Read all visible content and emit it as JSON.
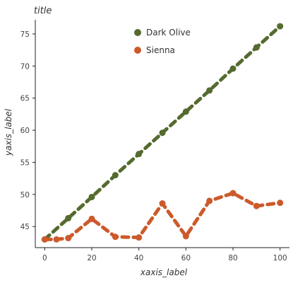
{
  "chart_data": {
    "type": "line",
    "title": "title",
    "xlabel": "xaxis_label",
    "ylabel": "yaxis_label",
    "xlim": [
      -4,
      104
    ],
    "ylim": [
      42.6,
      77.2
    ],
    "xticks": [
      0,
      20,
      40,
      60,
      80,
      100
    ],
    "yticks": [
      45,
      50,
      55,
      60,
      65,
      70,
      75
    ],
    "legend_position": "top-right",
    "grid": false,
    "series": [
      {
        "name": "Dark Olive",
        "color": "#556b2f",
        "x": [
          0,
          10,
          20,
          30,
          40,
          50,
          60,
          70,
          80,
          90,
          100
        ],
        "y": [
          43.0,
          46.3,
          49.6,
          53.0,
          56.3,
          59.6,
          62.9,
          66.2,
          69.6,
          72.9,
          76.2
        ]
      },
      {
        "name": "Sienna",
        "color": "#cc5a2a",
        "x": [
          0,
          5,
          10,
          20,
          30,
          40,
          50,
          60,
          70,
          80,
          90,
          100
        ],
        "y": [
          43.0,
          43.0,
          43.2,
          46.2,
          43.4,
          43.3,
          48.6,
          43.5,
          49.0,
          50.2,
          48.2,
          48.7
        ]
      }
    ]
  }
}
